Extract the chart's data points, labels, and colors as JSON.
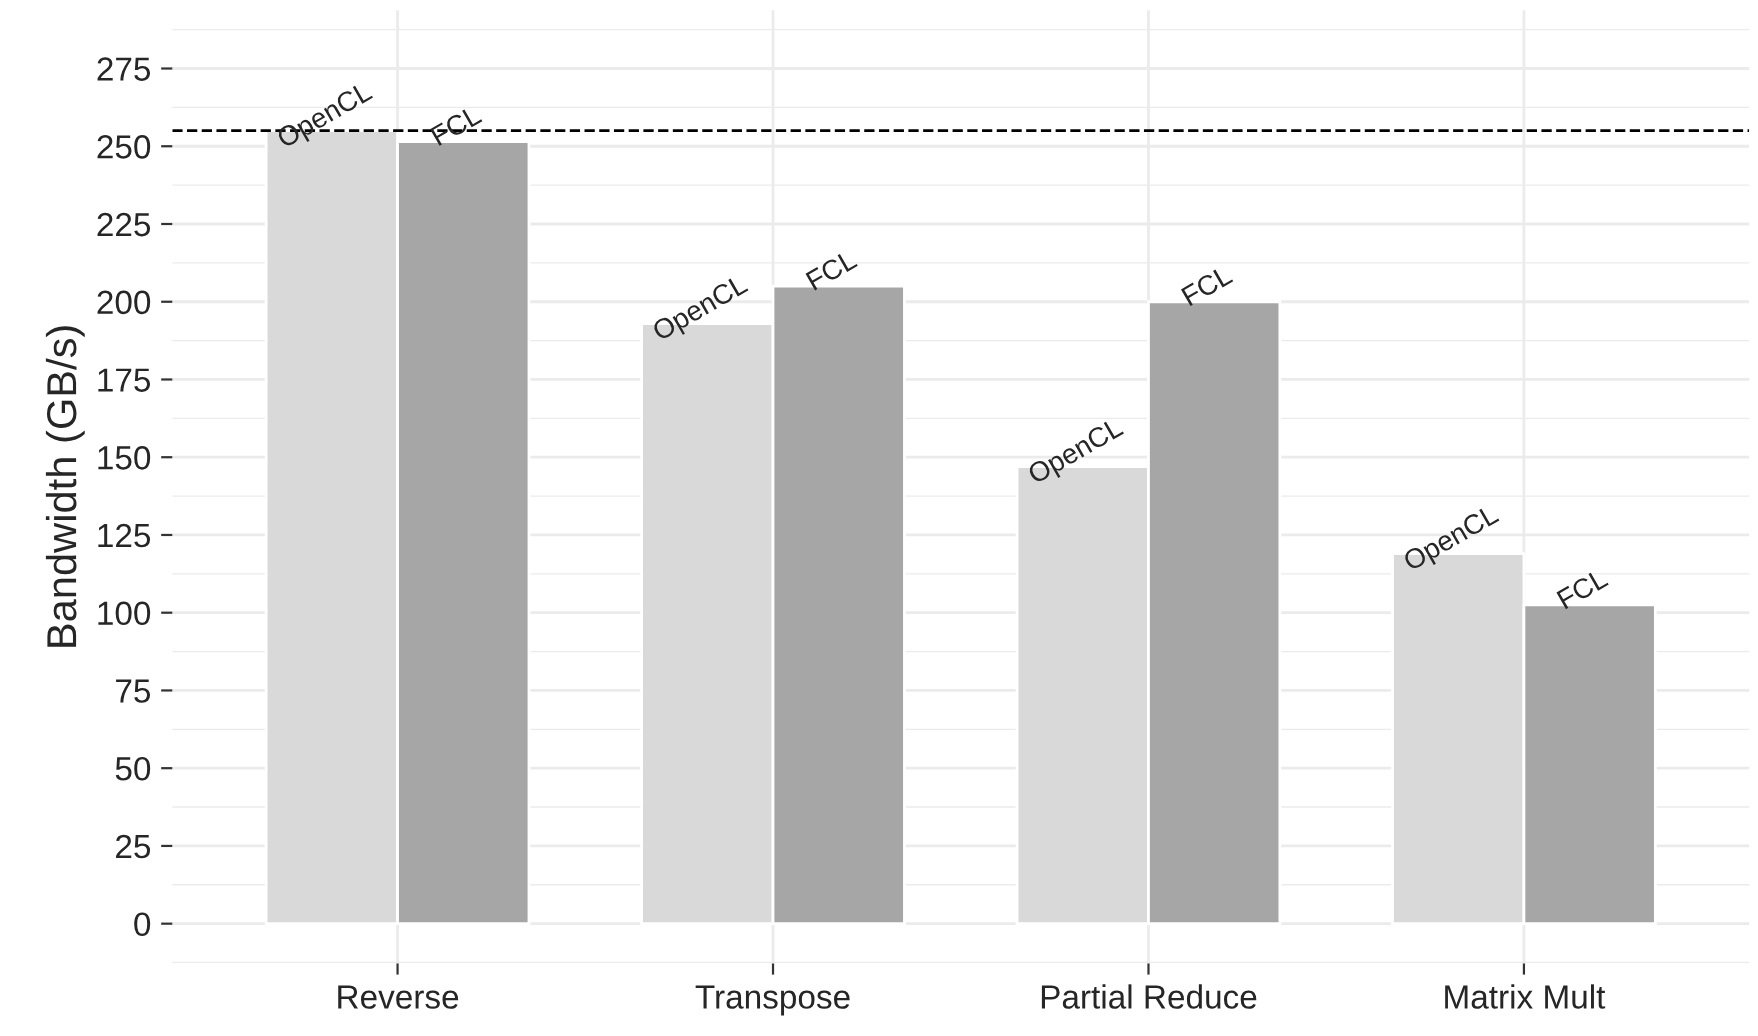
{
  "chart_data": {
    "type": "bar",
    "ylabel": "Bandwidth (GB/s)",
    "categories": [
      "Reverse",
      "Transpose",
      "Partial Reduce",
      "Matrix Mult"
    ],
    "series": [
      {
        "name": "OpenCL",
        "color": "#d9d9d9",
        "values": [
          255,
          193,
          147,
          119
        ]
      },
      {
        "name": "FCL",
        "color": "#a6a6a6",
        "values": [
          251.5,
          205,
          200,
          102.5
        ]
      }
    ],
    "ylim": [
      -12.8,
      293.7
    ],
    "yticks": [
      0,
      25,
      50,
      75,
      100,
      125,
      150,
      175,
      200,
      225,
      250,
      275
    ],
    "ref_lines": [
      {
        "axis": "y",
        "value": 255,
        "line_style": "dashed",
        "color": "#000000"
      }
    ],
    "grid": true,
    "legend": false
  }
}
